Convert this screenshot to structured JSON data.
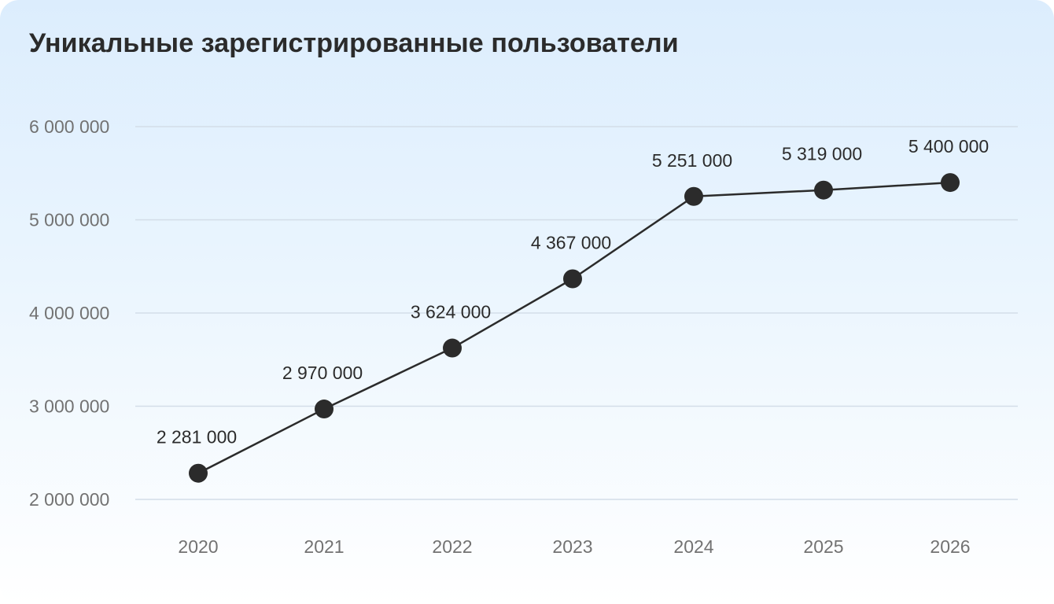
{
  "chart_data": {
    "type": "line",
    "title": "Уникальные зарегистрированные пользователи",
    "xlabel": "",
    "ylabel": "",
    "categories": [
      "2020",
      "2021",
      "2022",
      "2023",
      "2024",
      "2025",
      "2026"
    ],
    "values": [
      2281000,
      2970000,
      3624000,
      4367000,
      5251000,
      5319000,
      5400000
    ],
    "data_labels": [
      "2 281 000",
      "2 970 000",
      "3 624 000",
      "4 367 000",
      "5 251 000",
      "5 319 000",
      "5 400 000"
    ],
    "yticks": [
      2000000,
      3000000,
      4000000,
      5000000,
      6000000
    ],
    "ytick_labels": [
      "2 000 000",
      "3 000 000",
      "4 000 000",
      "5 000 000",
      "6 000 000"
    ],
    "ylim": [
      2000000,
      6000000
    ],
    "grid": true,
    "legend": "none",
    "line_color": "#2b2b2b",
    "grid_color": "#d3dde8"
  }
}
